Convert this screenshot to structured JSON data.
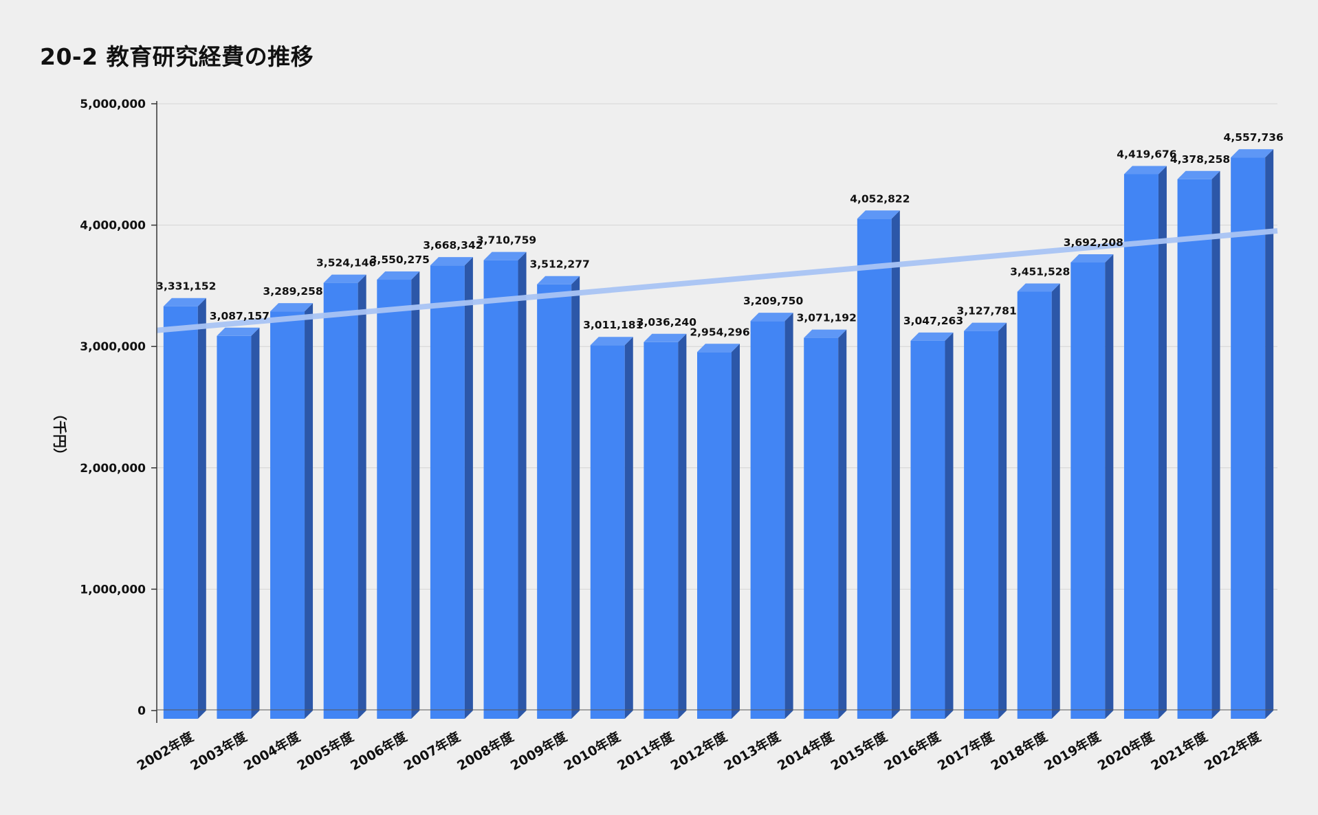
{
  "chart_data": {
    "type": "bar",
    "title": "20-2 教育研究経費の推移",
    "ylabel": "（千円）",
    "xlabel": "",
    "ylim": [
      0,
      5000000
    ],
    "yticks": [
      0,
      1000000,
      2000000,
      3000000,
      4000000,
      5000000
    ],
    "ytick_labels": [
      "0",
      "1,000,000",
      "2,000,000",
      "3,000,000",
      "4,000,000",
      "5,000,000"
    ],
    "grid": true,
    "bar_style": "3d",
    "trendline": true,
    "colors": {
      "bar_front": "#4285f4",
      "bar_side": "#2c57a8",
      "bar_top": "#5e97f6",
      "trendline": "#a9c4f5",
      "gridline": "#d4d4d4",
      "background": "#efefef"
    },
    "categories": [
      "2002年度",
      "2003年度",
      "2004年度",
      "2005年度",
      "2006年度",
      "2007年度",
      "2008年度",
      "2009年度",
      "2010年度",
      "2011年度",
      "2012年度",
      "2013年度",
      "2014年度",
      "2015年度",
      "2016年度",
      "2017年度",
      "2018年度",
      "2019年度",
      "2020年度",
      "2021年度",
      "2022年度"
    ],
    "values": [
      3331152,
      3087157,
      3289258,
      3524146,
      3550275,
      3668342,
      3710759,
      3512277,
      3011181,
      3036240,
      2954296,
      3209750,
      3071192,
      4052822,
      3047263,
      3127781,
      3451528,
      3692208,
      4419676,
      4378258,
      4557736
    ],
    "value_labels": [
      "3,331,152",
      "3,087,157",
      "3,289,258",
      "3,524,146",
      "3,550,275",
      "3,668,342",
      "3,710,759",
      "3,512,277",
      "3,011,181",
      "3,036,240",
      "2,954,296",
      "3,209,750",
      "3,071,192",
      "4,052,822",
      "3,047,263",
      "3,127,781",
      "3,451,528",
      "3,692,208",
      "4,419,676",
      "4,378,258",
      "4,557,736"
    ]
  }
}
